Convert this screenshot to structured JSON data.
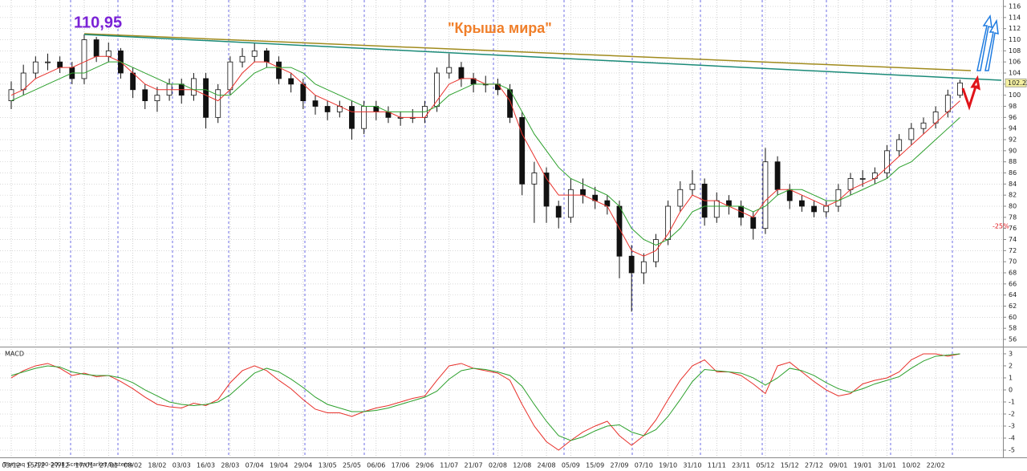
{
  "chart_data": [
    {
      "type": "candlestick",
      "categories": [
        "03/12",
        null,
        "15/12",
        null,
        "27/12",
        null,
        "17/01",
        null,
        "27/01",
        null,
        "08/02",
        null,
        "18/02",
        null,
        "03/03",
        null,
        "16/03",
        null,
        "28/03",
        null,
        "07/04",
        null,
        "19/04",
        null,
        "29/04",
        null,
        "13/05",
        null,
        "25/05",
        null,
        "06/06",
        null,
        "17/06",
        null,
        "29/06",
        null,
        "11/07",
        null,
        "21/07",
        null,
        "02/08",
        null,
        "12/08",
        null,
        "24/08",
        null,
        "05/09",
        null,
        "15/09",
        null,
        "27/09",
        null,
        "07/10",
        null,
        "19/10",
        null,
        "31/10",
        null,
        "11/11",
        null,
        "23/11",
        null,
        "05/12",
        null,
        "15/12",
        null,
        "27/12",
        null,
        "09/01",
        null,
        "19/01",
        null,
        "31/01",
        null,
        "10/02",
        null,
        "22/02",
        null,
        null
      ],
      "open": [
        99,
        101,
        104,
        106,
        106,
        105,
        103,
        110,
        107,
        108,
        104,
        101,
        99,
        100,
        102,
        100,
        103,
        96,
        101,
        106,
        107,
        108,
        106,
        103,
        102,
        99,
        98,
        97,
        98,
        94,
        98,
        97,
        96,
        96,
        96,
        98,
        104,
        105,
        103,
        102,
        102,
        101,
        96,
        84,
        86,
        80,
        78,
        83,
        82,
        81,
        80,
        71,
        68,
        70,
        74,
        80,
        83,
        84,
        78,
        81,
        80,
        78,
        76,
        88,
        83,
        81,
        80,
        79,
        80,
        83,
        85,
        85,
        86,
        90,
        92,
        94,
        95,
        97,
        100
      ],
      "high": [
        102.5,
        105.5,
        107,
        107.5,
        107,
        106,
        110.95,
        110.5,
        109.5,
        108.5,
        105,
        102,
        101.5,
        103,
        103,
        104,
        104,
        102,
        107,
        108.5,
        109.5,
        108.5,
        107,
        104,
        103,
        100,
        99,
        99,
        99,
        99,
        99,
        98,
        97,
        97.5,
        99,
        105,
        107.5,
        106,
        104,
        103.5,
        103,
        102,
        97,
        88,
        87,
        81,
        85,
        85,
        83.5,
        82,
        81,
        73,
        71.5,
        75,
        81,
        84.5,
        86.5,
        85,
        82.5,
        82,
        81,
        79,
        90.5,
        89,
        84,
        82,
        81,
        81,
        84,
        86,
        86.5,
        87,
        91,
        93,
        95,
        96,
        98,
        101,
        102.8
      ],
      "low": [
        97.5,
        100,
        103,
        104.5,
        104,
        102,
        102,
        106,
        106,
        103,
        99.5,
        97.5,
        97,
        99,
        98.5,
        99,
        94,
        95,
        100,
        105,
        106,
        105,
        102,
        100.5,
        97.5,
        96.5,
        95.5,
        96,
        92,
        93,
        95.5,
        95,
        94.5,
        95,
        95,
        97,
        103,
        101.5,
        100.5,
        100.5,
        100,
        95,
        82,
        77,
        77,
        76,
        77,
        80.5,
        79.5,
        78.5,
        67,
        61,
        66,
        69,
        73,
        79,
        82,
        76.5,
        77,
        78.5,
        76.5,
        74,
        75,
        82,
        79.5,
        79,
        78,
        78,
        79,
        82,
        83.5,
        84,
        85,
        89,
        91,
        93,
        94,
        96,
        99.5
      ],
      "close": [
        101,
        104,
        106,
        106,
        105,
        103,
        110,
        107,
        108,
        104,
        101,
        99,
        100,
        102,
        100,
        103,
        96,
        101,
        106,
        107,
        108,
        106,
        103,
        102,
        99,
        98,
        97,
        98,
        94,
        98,
        97,
        96,
        96,
        96,
        98,
        104,
        105,
        103,
        102,
        102,
        101,
        96,
        84,
        86,
        80,
        78,
        83,
        82,
        81,
        80,
        71,
        68,
        70,
        74,
        80,
        83,
        84,
        78,
        81,
        80,
        78,
        76,
        88,
        83,
        81,
        80,
        79,
        80,
        83,
        85,
        85,
        86,
        90,
        92,
        94,
        95,
        97,
        100,
        102.22
      ],
      "moving_averages": [
        {
          "color": "#e8302a",
          "values": [
            100,
            101,
            103,
            104,
            105,
            105,
            106,
            107,
            107,
            106,
            104,
            102,
            101,
            101,
            101,
            101,
            100,
            99,
            101,
            104,
            106,
            106,
            105,
            104,
            102,
            100,
            99,
            98,
            97,
            97,
            97,
            97,
            96,
            96,
            96,
            99,
            102,
            103,
            103,
            102,
            102,
            99,
            93,
            89,
            85,
            82,
            82,
            82,
            81,
            80,
            76,
            72,
            71,
            72,
            75,
            79,
            82,
            81,
            81,
            80,
            79,
            78,
            81,
            83,
            83,
            82,
            81,
            80,
            81,
            83,
            84,
            85,
            87,
            89,
            91,
            93,
            95,
            97,
            99
          ]
        },
        {
          "color": "#2ca02c",
          "values": [
            99,
            100,
            101,
            102,
            103,
            104,
            104,
            105,
            106,
            106,
            105,
            104,
            103,
            102,
            102,
            101,
            101,
            100,
            100,
            102,
            104,
            105,
            105,
            105,
            104,
            102,
            101,
            100,
            99,
            98,
            98,
            97,
            97,
            97,
            97,
            98,
            100,
            101,
            102,
            102,
            102,
            101,
            97,
            93,
            90,
            87,
            85,
            84,
            83,
            82,
            80,
            76,
            74,
            73,
            74,
            76,
            79,
            80,
            80,
            80,
            80,
            79,
            80,
            82,
            83,
            83,
            82,
            81,
            81,
            82,
            83,
            84,
            85,
            87,
            88,
            90,
            92,
            94,
            96
          ]
        }
      ],
      "ylim": [
        54.7,
        117.16
      ],
      "yticks": [
        116,
        114,
        112,
        110,
        108,
        106,
        104,
        102,
        100,
        98,
        96,
        94,
        92,
        90,
        88,
        86,
        84,
        82,
        80,
        78,
        76,
        74,
        72,
        70,
        68,
        66,
        64,
        62,
        60,
        58,
        56
      ],
      "grid": true,
      "last_price": 102.22,
      "annotations": [
        "110,95",
        "\"Крыша мира\"",
        "-25%"
      ]
    },
    {
      "type": "line",
      "title": "MACD",
      "series": [
        {
          "color": "#e8302a",
          "values": [
            1.0,
            1.6,
            2.0,
            2.2,
            1.8,
            1.2,
            1.4,
            1.1,
            1.2,
            0.7,
            0.1,
            -0.6,
            -1.2,
            -1.4,
            -1.5,
            -1.1,
            -1.3,
            -0.8,
            0.6,
            1.6,
            2.0,
            1.6,
            0.8,
            0.1,
            -0.8,
            -1.6,
            -1.9,
            -1.9,
            -2.2,
            -1.8,
            -1.5,
            -1.3,
            -1.0,
            -0.7,
            -0.5,
            0.8,
            2.0,
            2.2,
            1.8,
            1.6,
            1.4,
            0.8,
            -1.2,
            -3.0,
            -4.3,
            -5.0,
            -4.2,
            -3.5,
            -3.0,
            -2.6,
            -3.8,
            -4.6,
            -3.8,
            -2.5,
            -0.8,
            0.8,
            2.0,
            2.5,
            1.5,
            1.5,
            1.2,
            0.5,
            -0.3,
            2.0,
            2.3,
            1.5,
            0.7,
            0.0,
            -0.5,
            -0.3,
            0.5,
            0.8,
            1.0,
            1.5,
            2.5,
            3.0,
            3.0,
            2.8,
            3.0
          ]
        },
        {
          "color": "#2ca02c",
          "values": [
            1.2,
            1.5,
            1.8,
            2.0,
            1.9,
            1.5,
            1.3,
            1.2,
            1.2,
            1.0,
            0.6,
            0.0,
            -0.5,
            -1.0,
            -1.2,
            -1.3,
            -1.2,
            -1.0,
            -0.4,
            0.5,
            1.4,
            1.8,
            1.5,
            0.9,
            0.2,
            -0.6,
            -1.2,
            -1.5,
            -1.8,
            -1.8,
            -1.7,
            -1.5,
            -1.2,
            -0.9,
            -0.6,
            -0.1,
            0.9,
            1.6,
            1.8,
            1.7,
            1.5,
            1.2,
            0.3,
            -1.2,
            -2.6,
            -3.8,
            -4.2,
            -3.9,
            -3.4,
            -3.0,
            -2.9,
            -3.5,
            -3.8,
            -3.3,
            -2.2,
            -0.8,
            0.7,
            1.7,
            1.6,
            1.5,
            1.4,
            1.0,
            0.4,
            1.0,
            1.8,
            1.6,
            1.2,
            0.6,
            0.1,
            -0.2,
            0.1,
            0.5,
            0.8,
            1.1,
            1.8,
            2.4,
            2.8,
            2.9,
            3.0
          ]
        }
      ],
      "ylim": [
        -5.6,
        3.53
      ],
      "yticks": [
        3,
        2,
        1,
        0,
        -1,
        -2,
        -3,
        -4,
        -5
      ],
      "grid": true
    }
  ],
  "footer": "Transaq © 2000-2008 Screen Market Systems"
}
